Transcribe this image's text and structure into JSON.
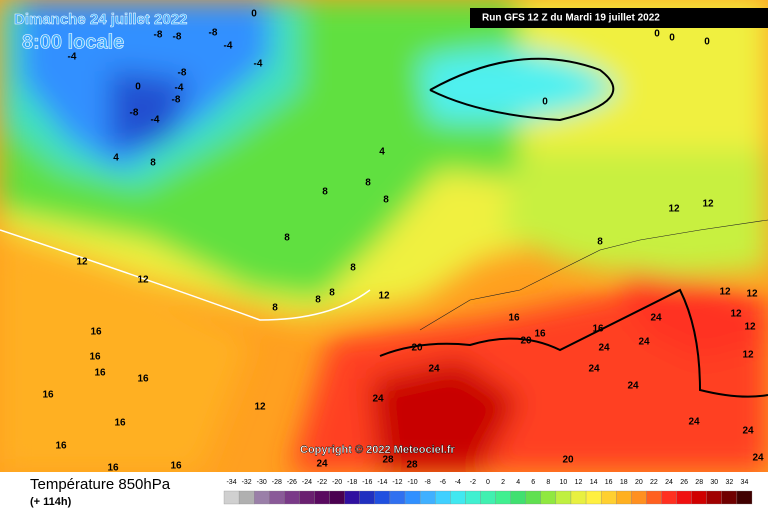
{
  "header": {
    "date": "Dimanche 24 juillet 2022",
    "time": "8:00 locale",
    "run": "Run GFS 12 Z du Mardi 19 juillet 2022"
  },
  "copyright": "Copyright © 2022 Meteociel.fr",
  "footer": {
    "title": "Température 850hPa",
    "lead": "(+ 114h)"
  },
  "legend": {
    "labels": [
      -34,
      -32,
      -30,
      -28,
      -26,
      -24,
      -22,
      -20,
      -18,
      -16,
      -14,
      -12,
      -10,
      -8,
      -6,
      -4,
      -2,
      0,
      2,
      4,
      6,
      8,
      10,
      12,
      14,
      16,
      18,
      20,
      22,
      24,
      26,
      28,
      30,
      32,
      34
    ],
    "colors": [
      "#d0d0d0",
      "#b0b0b0",
      "#9a7fa8",
      "#8a5a98",
      "#7a3a88",
      "#6a2070",
      "#5a0a60",
      "#4a0050",
      "#3010a0",
      "#2030c0",
      "#2050e0",
      "#3070f0",
      "#3090ff",
      "#40b0ff",
      "#40d0ff",
      "#40e8f0",
      "#40f0d0",
      "#40f0b0",
      "#40f090",
      "#40e070",
      "#60e050",
      "#90e840",
      "#c0f040",
      "#e8f040",
      "#fff040",
      "#ffd030",
      "#ffb020",
      "#ff9020",
      "#ff6020",
      "#ff3020",
      "#f01010",
      "#d00000",
      "#a00000",
      "#700000",
      "#400000"
    ]
  },
  "map_labels": [
    "-8",
    "-8",
    "-8",
    "-4",
    "-4",
    "-4",
    "-8",
    "0",
    "-4",
    "-8",
    "-8",
    "-4",
    "4",
    "8",
    "0",
    "0",
    "0",
    "0",
    "0",
    "4",
    "8",
    "8",
    "8",
    "8",
    "8",
    "8",
    "8",
    "8",
    "12",
    "12",
    "12",
    "12",
    "12",
    "8",
    "16",
    "16",
    "16",
    "16",
    "16",
    "16",
    "16",
    "16",
    "16",
    "12",
    "16",
    "16",
    "16",
    "20",
    "20",
    "24",
    "24",
    "24",
    "24",
    "24",
    "24",
    "24",
    "24",
    "24",
    "24",
    "24",
    "28",
    "28",
    "20",
    "12",
    "12",
    "12",
    "12",
    "12"
  ]
}
